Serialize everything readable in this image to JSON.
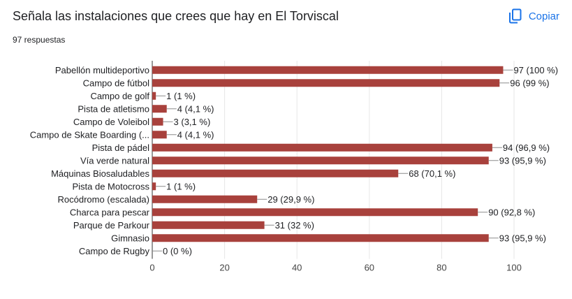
{
  "question": {
    "title": "Señala las instalaciones que crees que hay en El Torviscal",
    "responses": "97 respuestas"
  },
  "toolbar": {
    "copy_label": "Copiar",
    "copy_icon": "copy-icon"
  },
  "colors": {
    "bar": "#a8413c",
    "accent": "#1a73e8",
    "axis": "#333333",
    "grid": "#e6e6e6"
  },
  "chart_data": {
    "type": "bar",
    "orientation": "horizontal",
    "categories": [
      "Pabellón multideportivo",
      "Campo de fútbol",
      "Campo de golf",
      "Pista de atletismo",
      "Campo de Voleibol",
      "Campo de Skate Boarding (...",
      "Pista de pádel",
      "Vía verde natural",
      "Máquinas Biosaludables",
      "Pista de Motocross",
      "Rocódromo (escalada)",
      "Charca para pescar",
      "Parque de Parkour",
      "Gimnasio",
      "Campo de Rugby"
    ],
    "values": [
      97,
      96,
      1,
      4,
      3,
      4,
      94,
      93,
      68,
      1,
      29,
      90,
      31,
      93,
      0
    ],
    "value_labels": [
      "97 (100 %)",
      "96 (99 %)",
      "1 (1 %)",
      "4 (4,1 %)",
      "3 (3,1 %)",
      "4 (4,1 %)",
      "94 (96,9 %)",
      "93 (95,9 %)",
      "68 (70,1 %)",
      "1 (1 %)",
      "29 (29,9 %)",
      "90 (92,8 %)",
      "31 (32 %)",
      "93 (95,9 %)",
      "0 (0 %)"
    ],
    "xticks": [
      "0",
      "20",
      "40",
      "60",
      "80",
      "100"
    ],
    "xlim": [
      0,
      100
    ],
    "grid": true,
    "legend": "none"
  }
}
